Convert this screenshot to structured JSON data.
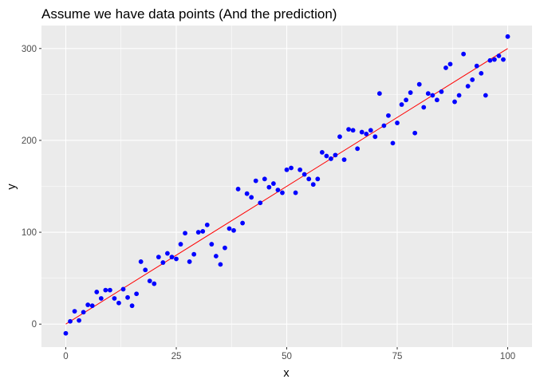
{
  "chart_data": {
    "type": "scatter",
    "title": "Assume we have data points (And the prediction)",
    "xlabel": "x",
    "ylabel": "y",
    "xlim": [
      -5.5,
      105.5
    ],
    "ylim": [
      -25,
      325
    ],
    "x_ticks": [
      0,
      25,
      50,
      75,
      100
    ],
    "y_ticks": [
      0,
      100,
      200,
      300
    ],
    "grid": true,
    "legend": "none",
    "colors": {
      "panel": "#ebebeb",
      "grid_major": "#ffffff",
      "points": "#0000ff",
      "prediction": "#ff0000",
      "tick_text": "#4d4d4d",
      "tick_mark": "#333333"
    },
    "series": [
      {
        "kind": "points",
        "x": [
          0,
          1,
          2,
          3,
          4,
          5,
          6,
          7,
          8,
          9,
          10,
          11,
          12,
          13,
          14,
          15,
          16,
          17,
          18,
          19,
          20,
          21,
          22,
          23,
          24,
          25,
          26,
          27,
          28,
          29,
          30,
          31,
          32,
          33,
          34,
          35,
          36,
          37,
          38,
          39,
          40,
          41,
          42,
          43,
          44,
          45,
          46,
          47,
          48,
          49,
          50,
          51,
          52,
          53,
          54,
          55,
          56,
          57,
          58,
          59,
          60,
          61,
          62,
          63,
          64,
          65,
          66,
          67,
          68,
          69,
          70,
          71,
          72,
          73,
          74,
          75,
          76,
          77,
          78,
          79,
          80,
          81,
          82,
          83,
          84,
          85,
          86,
          87,
          88,
          89,
          90,
          91,
          92,
          93,
          94,
          95,
          96,
          97,
          98,
          99,
          100
        ],
        "y": [
          -10,
          3,
          14,
          4,
          13,
          21,
          20,
          35,
          28,
          37,
          37,
          28,
          23,
          38,
          29,
          20,
          33,
          68,
          59,
          47,
          44,
          73,
          67,
          77,
          73,
          71,
          87,
          99,
          68,
          76,
          100,
          101,
          108,
          87,
          74,
          65,
          83,
          104,
          102,
          147,
          110,
          142,
          138,
          156,
          132,
          158,
          149,
          153,
          146,
          143,
          168,
          170,
          143,
          168,
          163,
          158,
          152,
          158,
          187,
          183,
          180,
          184,
          204,
          179,
          212,
          211,
          191,
          209,
          207,
          211,
          204,
          251,
          216,
          227,
          197,
          219,
          239,
          244,
          252,
          208,
          261,
          236,
          251,
          249,
          244,
          253,
          279,
          283,
          242,
          249,
          294,
          259,
          266,
          281,
          273,
          249,
          287,
          288,
          292,
          288,
          313
        ]
      },
      {
        "kind": "line",
        "name": "prediction",
        "x": [
          0,
          100
        ],
        "y": [
          0,
          300
        ]
      }
    ]
  }
}
